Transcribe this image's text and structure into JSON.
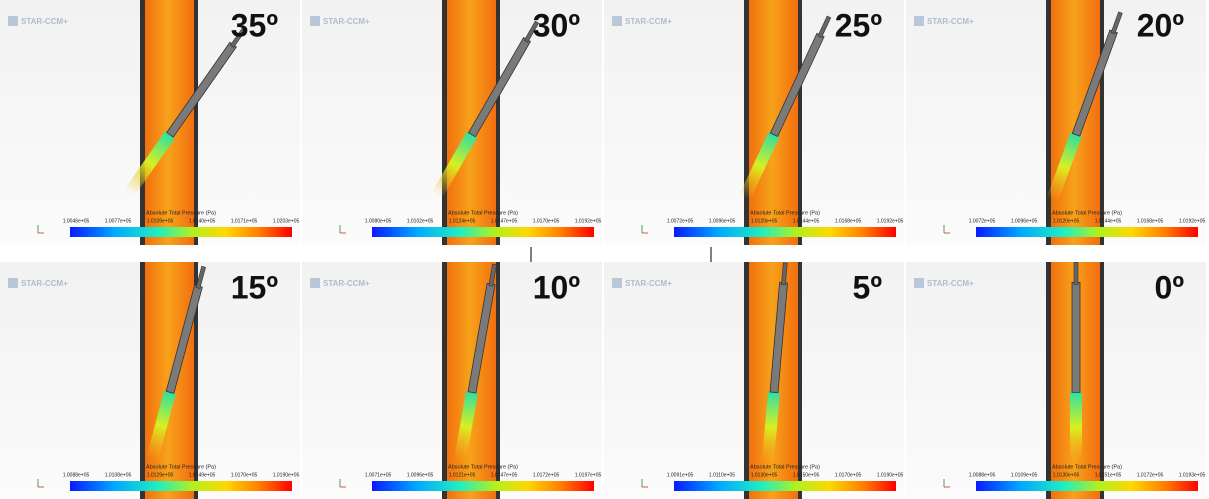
{
  "logo": "STAR-CCM+",
  "colorbar_title": "Absolute Total Pressure (Pa)",
  "panels": [
    {
      "angle": "35º",
      "ticks": [
        "1.0046e+05",
        "1.0077e+05",
        "1.0109e+05",
        "1.0140e+05",
        "1.0171e+05",
        "1.0203e+05"
      ]
    },
    {
      "angle": "30º",
      "ticks": [
        "1.0080e+05",
        "1.0102e+05",
        "1.0124e+05",
        "1.0147e+05",
        "1.0170e+05",
        "1.0192e+05"
      ]
    },
    {
      "angle": "25º",
      "ticks": [
        "1.0072e+05",
        "1.0096e+05",
        "1.0120e+05",
        "1.0144e+05",
        "1.0168e+05",
        "1.0192e+05"
      ]
    },
    {
      "angle": "20º",
      "ticks": [
        "1.0072e+05",
        "1.0096e+05",
        "1.0120e+05",
        "1.0144e+05",
        "1.0168e+05",
        "1.0192e+05"
      ]
    },
    {
      "angle": "15º",
      "ticks": [
        "1.0088e+05",
        "1.0108e+05",
        "1.0129e+05",
        "1.0149e+05",
        "1.0170e+05",
        "1.0190e+05"
      ]
    },
    {
      "angle": "10º",
      "ticks": [
        "1.0071e+05",
        "1.0096e+05",
        "1.0121e+05",
        "1.0147e+05",
        "1.0172e+05",
        "1.0197e+05"
      ]
    },
    {
      "angle": "5º",
      "ticks": [
        "1.0091e+05",
        "1.0110e+05",
        "1.0130e+05",
        "1.0150e+05",
        "1.0170e+05",
        "1.0190e+05"
      ]
    },
    {
      "angle": "0º",
      "ticks": [
        "1.0088e+05",
        "1.0109e+05",
        "1.0130e+05",
        "1.0151e+05",
        "1.0172e+05",
        "1.0193e+05"
      ]
    }
  ]
}
